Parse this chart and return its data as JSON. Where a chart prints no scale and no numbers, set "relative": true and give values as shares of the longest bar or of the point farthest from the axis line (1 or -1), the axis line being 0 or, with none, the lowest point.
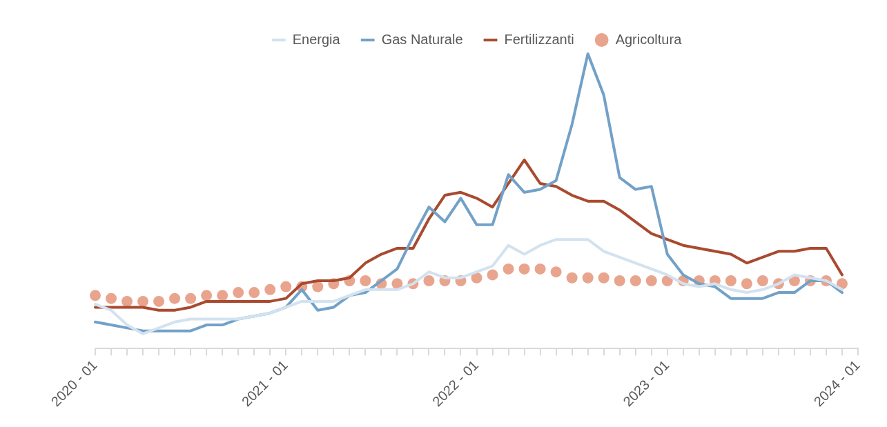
{
  "chart_data": {
    "type": "line",
    "relative": true,
    "legend": "top",
    "grid": false,
    "x": [
      "2020-01",
      "2020-02",
      "2020-03",
      "2020-04",
      "2020-05",
      "2020-06",
      "2020-07",
      "2020-08",
      "2020-09",
      "2020-10",
      "2020-11",
      "2020-12",
      "2021-01",
      "2021-02",
      "2021-03",
      "2021-04",
      "2021-05",
      "2021-06",
      "2021-07",
      "2021-08",
      "2021-09",
      "2021-10",
      "2021-11",
      "2021-12",
      "2022-01",
      "2022-02",
      "2022-03",
      "2022-04",
      "2022-05",
      "2022-06",
      "2022-07",
      "2022-08",
      "2022-09",
      "2022-10",
      "2022-11",
      "2022-12",
      "2023-01",
      "2023-02",
      "2023-03",
      "2023-04",
      "2023-05",
      "2023-06",
      "2023-07",
      "2023-08",
      "2023-09",
      "2023-10",
      "2023-11",
      "2023-12"
    ],
    "xlim": [
      "2020-01",
      "2024-01"
    ],
    "xticks": [
      {
        "value": "2020-01",
        "label": "2020 - 01"
      },
      {
        "value": "2020-02",
        "label": null
      },
      {
        "value": "2020-03",
        "label": null
      },
      {
        "value": "2020-04",
        "label": null
      },
      {
        "value": "2020-05",
        "label": null
      },
      {
        "value": "2020-06",
        "label": null
      },
      {
        "value": "2020-07",
        "label": null
      },
      {
        "value": "2020-08",
        "label": null
      },
      {
        "value": "2020-09",
        "label": null
      },
      {
        "value": "2020-10",
        "label": null
      },
      {
        "value": "2020-11",
        "label": null
      },
      {
        "value": "2020-12",
        "label": null
      },
      {
        "value": "2021-01",
        "label": "2021 - 01"
      },
      {
        "value": "2021-02",
        "label": null
      },
      {
        "value": "2021-03",
        "label": null
      },
      {
        "value": "2021-04",
        "label": null
      },
      {
        "value": "2021-05",
        "label": null
      },
      {
        "value": "2021-06",
        "label": null
      },
      {
        "value": "2021-07",
        "label": null
      },
      {
        "value": "2021-08",
        "label": null
      },
      {
        "value": "2021-09",
        "label": null
      },
      {
        "value": "2021-10",
        "label": null
      },
      {
        "value": "2021-11",
        "label": null
      },
      {
        "value": "2021-12",
        "label": null
      },
      {
        "value": "2022-01",
        "label": "2022 - 01"
      },
      {
        "value": "2022-02",
        "label": null
      },
      {
        "value": "2022-03",
        "label": null
      },
      {
        "value": "2022-04",
        "label": null
      },
      {
        "value": "2022-05",
        "label": null
      },
      {
        "value": "2022-06",
        "label": null
      },
      {
        "value": "2022-07",
        "label": null
      },
      {
        "value": "2022-08",
        "label": null
      },
      {
        "value": "2022-09",
        "label": null
      },
      {
        "value": "2022-10",
        "label": null
      },
      {
        "value": "2022-11",
        "label": null
      },
      {
        "value": "2022-12",
        "label": null
      },
      {
        "value": "2023-01",
        "label": "2023 - 01"
      },
      {
        "value": "2023-02",
        "label": null
      },
      {
        "value": "2023-03",
        "label": null
      },
      {
        "value": "2023-04",
        "label": null
      },
      {
        "value": "2023-05",
        "label": null
      },
      {
        "value": "2023-06",
        "label": null
      },
      {
        "value": "2023-07",
        "label": null
      },
      {
        "value": "2023-08",
        "label": null
      },
      {
        "value": "2023-09",
        "label": null
      },
      {
        "value": "2023-10",
        "label": null
      },
      {
        "value": "2023-11",
        "label": null
      },
      {
        "value": "2023-12",
        "label": null
      },
      {
        "value": "2024-01",
        "label": "2024 - 01"
      }
    ],
    "series": [
      {
        "name": "Energia",
        "color": "#d3e2ef",
        "marker": "none",
        "values": [
          0.15,
          0.13,
          0.08,
          0.05,
          0.07,
          0.09,
          0.1,
          0.1,
          0.1,
          0.1,
          0.11,
          0.12,
          0.14,
          0.16,
          0.16,
          0.16,
          0.18,
          0.2,
          0.2,
          0.2,
          0.22,
          0.26,
          0.24,
          0.24,
          0.26,
          0.28,
          0.35,
          0.32,
          0.35,
          0.37,
          0.37,
          0.37,
          0.33,
          0.31,
          0.29,
          0.27,
          0.25,
          0.22,
          0.21,
          0.22,
          0.2,
          0.19,
          0.2,
          0.22,
          0.25,
          0.24,
          0.23,
          0.2
        ]
      },
      {
        "name": "Gas Naturale",
        "color": "#72a1c8",
        "marker": "none",
        "values": [
          0.09,
          0.08,
          0.07,
          0.06,
          0.06,
          0.06,
          0.06,
          0.08,
          0.08,
          0.1,
          0.11,
          0.12,
          0.14,
          0.2,
          0.13,
          0.14,
          0.18,
          0.19,
          0.23,
          0.27,
          0.38,
          0.48,
          0.43,
          0.51,
          0.42,
          0.42,
          0.59,
          0.53,
          0.54,
          0.57,
          0.76,
          1,
          0.86,
          0.58,
          0.54,
          0.55,
          0.32,
          0.25,
          0.22,
          0.21,
          0.17,
          0.17,
          0.17,
          0.19,
          0.19,
          0.23,
          0.23,
          0.19
        ]
      },
      {
        "name": "Fertilizzanti",
        "color": "#a94a2f",
        "marker": "none",
        "values": [
          0.14,
          0.14,
          0.14,
          0.14,
          0.13,
          0.13,
          0.14,
          0.16,
          0.16,
          0.16,
          0.16,
          0.16,
          0.17,
          0.22,
          0.23,
          0.23,
          0.24,
          0.29,
          0.32,
          0.34,
          0.34,
          0.44,
          0.52,
          0.53,
          0.51,
          0.48,
          0.56,
          0.64,
          0.56,
          0.55,
          0.52,
          0.5,
          0.5,
          0.47,
          0.43,
          0.39,
          0.37,
          0.35,
          0.34,
          0.33,
          0.32,
          0.29,
          0.31,
          0.33,
          0.33,
          0.34,
          0.34,
          0.25
        ]
      },
      {
        "name": "Agricoltura",
        "type": "scatter",
        "color": "#e9a48e",
        "marker": "circle",
        "values": [
          0.18,
          0.17,
          0.16,
          0.16,
          0.16,
          0.17,
          0.17,
          0.18,
          0.18,
          0.19,
          0.19,
          0.2,
          0.21,
          0.21,
          0.21,
          0.22,
          0.23,
          0.23,
          0.22,
          0.22,
          0.22,
          0.23,
          0.23,
          0.23,
          0.24,
          0.25,
          0.27,
          0.27,
          0.27,
          0.26,
          0.24,
          0.24,
          0.24,
          0.23,
          0.23,
          0.23,
          0.23,
          0.23,
          0.23,
          0.23,
          0.23,
          0.22,
          0.23,
          0.22,
          0.23,
          0.23,
          0.23,
          0.22
        ]
      }
    ]
  }
}
